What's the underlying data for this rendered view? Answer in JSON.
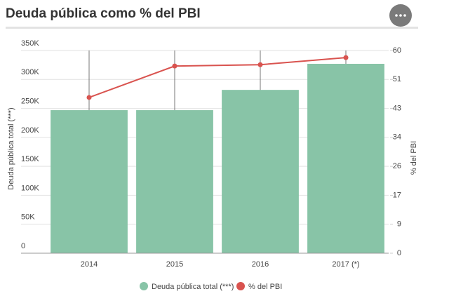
{
  "chart_data": {
    "type": "bar_line",
    "title": "Deuda pública como % del PBI",
    "categories": [
      "2014",
      "2015",
      "2016",
      "2017 (*)"
    ],
    "series": [
      {
        "name": "Deuda pública total (***)",
        "type": "bar",
        "color": "#88c4a7",
        "values": [
          247000,
          247000,
          282000,
          327000
        ]
      },
      {
        "name": "% del PBI",
        "type": "line",
        "axis": "y2",
        "color": "#d9534f",
        "values": [
          46.1,
          55.4,
          55.8,
          57.9
        ]
      }
    ],
    "ylabel": "Deuda pública total (***)",
    "y2label": "% del PBI",
    "ylim": [
      0,
      350000
    ],
    "yticks": [
      0,
      {
        "value": 50000,
        "label": "50K"
      },
      {
        "value": 100000,
        "label": "100K"
      },
      {
        "value": 150000,
        "label": "150K"
      },
      {
        "value": 200000,
        "label": "200K"
      },
      {
        "value": 250000,
        "label": "250K"
      },
      {
        "value": 300000,
        "label": "300K"
      },
      {
        "value": 350000,
        "label": "350K"
      }
    ],
    "y2lim": [
      0,
      60
    ],
    "y2ticks": [
      0,
      {
        "value": 8.57,
        "label": "9"
      },
      {
        "value": 17.14,
        "label": "17"
      },
      {
        "value": 25.71,
        "label": "26"
      },
      {
        "value": 34.29,
        "label": "34"
      },
      {
        "value": 42.86,
        "label": "43"
      },
      {
        "value": 51.43,
        "label": "51"
      },
      60
    ],
    "grid": true
  }
}
